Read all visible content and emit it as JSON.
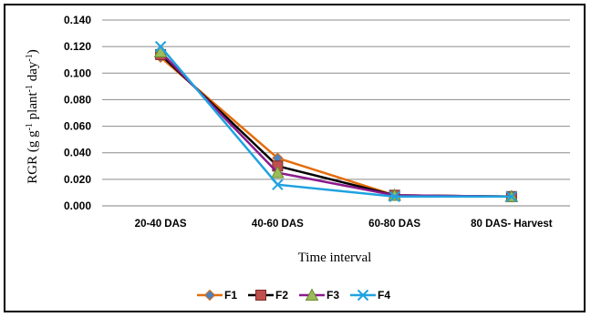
{
  "chart_data": {
    "type": "line",
    "categories": [
      "20-40 DAS",
      "40-60 DAS",
      "60-80 DAS",
      "80 DAS- Harvest"
    ],
    "series": [
      {
        "name": "F1",
        "values": [
          0.112,
          0.036,
          0.008,
          0.007
        ],
        "color": "#E46C0A",
        "marker": "diamond"
      },
      {
        "name": "F2",
        "values": [
          0.114,
          0.03,
          0.008,
          0.007
        ],
        "color": "#000000",
        "marker": "square"
      },
      {
        "name": "F3",
        "values": [
          0.116,
          0.025,
          0.008,
          0.007
        ],
        "color": "#8B1A8B",
        "marker": "triangle"
      },
      {
        "name": "F4",
        "values": [
          0.12,
          0.016,
          0.007,
          0.007
        ],
        "color": "#1FA2E0",
        "marker": "x"
      }
    ],
    "yticks": [
      "0.000",
      "0.020",
      "0.040",
      "0.060",
      "0.080",
      "0.100",
      "0.120",
      "0.140"
    ],
    "ylim": [
      0,
      0.14
    ],
    "xlabel": "Time interval",
    "ylabel": {
      "main": "RGR (g g",
      "sup1": "-1",
      "mid1": " plant",
      "sup2": "-1",
      "mid2": " day",
      "sup3": "-1",
      "end": ")"
    },
    "grid": true,
    "legend_position": "bottom"
  }
}
